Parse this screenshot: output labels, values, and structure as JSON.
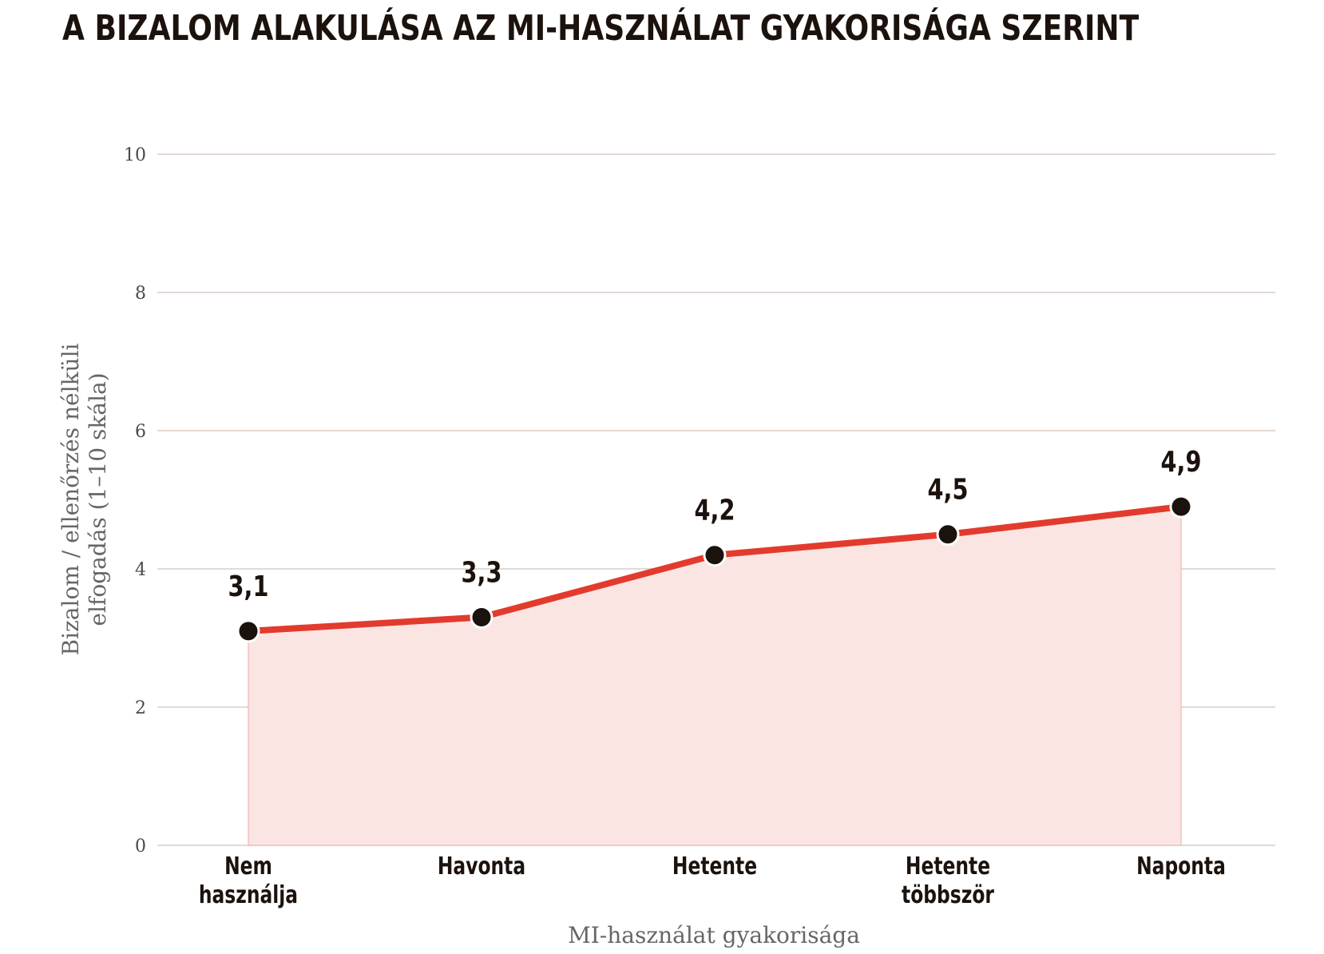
{
  "title": "A BIZALOM ALAKULÁSA AZ MI-HASZNÁLAT GYAKORISÁGA SZERINT",
  "colors": {
    "line": "#e23b2e",
    "area": "#fbe5e3",
    "marker": "#1c120d",
    "grid": "#e3d9d2"
  },
  "chart_data": {
    "type": "line",
    "categories": [
      [
        "Nem",
        "használja"
      ],
      [
        "Havonta"
      ],
      [
        "Hetente"
      ],
      [
        "Hetente",
        "többször"
      ],
      [
        "Naponta"
      ]
    ],
    "values": [
      3.1,
      3.3,
      4.2,
      4.5,
      4.9
    ],
    "data_labels": [
      "3,1",
      "3,3",
      "4,2",
      "4,5",
      "4,9"
    ],
    "xlabel": "MI-használat gyakorisága",
    "ylabel": [
      "Bizalom / ellenőrzés nélküli",
      "elfogadás (1–10 skála)"
    ],
    "ylim": [
      0,
      10
    ],
    "yticks": [
      0,
      2,
      4,
      6,
      8,
      10
    ],
    "area_fill": true,
    "grid": true,
    "legend": "none"
  }
}
